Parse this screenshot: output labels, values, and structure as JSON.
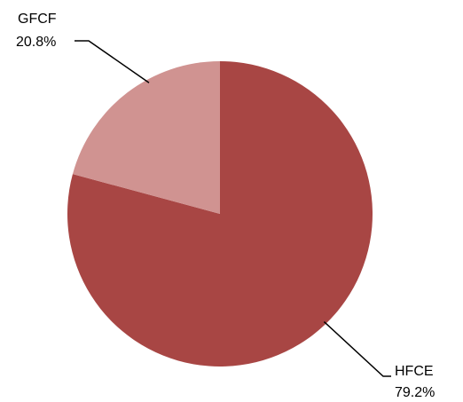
{
  "chart_data": {
    "type": "pie",
    "title": "",
    "start": "12 o'clock",
    "direction": "clockwise",
    "slices": [
      {
        "name": "HFCE",
        "value": 79.2,
        "label": "HFCE",
        "percent_label": "79.2%",
        "color": "#A84644",
        "label_position": "bottom-right"
      },
      {
        "name": "GFCF",
        "value": 20.8,
        "label": "GFCF",
        "percent_label": "20.8%",
        "color": "#D09391",
        "label_position": "top-left"
      }
    ],
    "legend": "none"
  }
}
